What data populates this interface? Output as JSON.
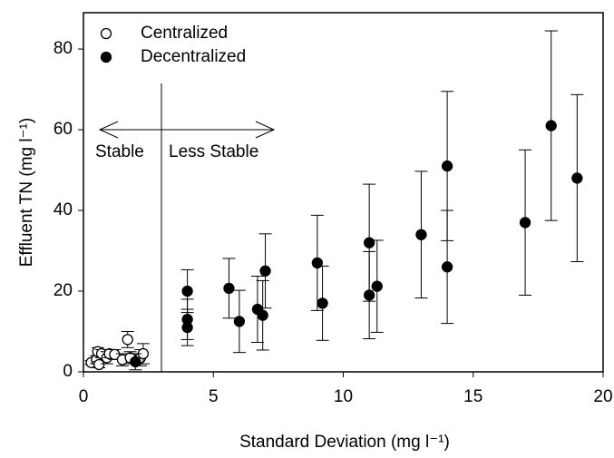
{
  "chart_data": {
    "type": "scatter",
    "x_label": "Standard Deviation (mg l⁻¹)",
    "y_label": "Effluent TN (mg l⁻¹)",
    "annotations": [
      "Stable",
      "Less Stable"
    ],
    "xlim": [
      0,
      20
    ],
    "ylim": [
      0,
      89
    ],
    "xticks": [
      0,
      5,
      10,
      15,
      20
    ],
    "yticks": [
      0,
      20,
      40,
      60,
      80
    ],
    "legend": "top-left",
    "series": [
      {
        "name": "Centralized",
        "color": "#000000",
        "filled": false,
        "x": [
          0.3,
          0.5,
          0.55,
          0.6,
          0.7,
          0.9,
          1.0,
          1.2,
          1.5,
          1.7,
          1.8,
          2.2,
          2.3
        ],
        "values": [
          2.3,
          3,
          5,
          1.8,
          4.5,
          3.5,
          4.5,
          4.3,
          3,
          8,
          3.5,
          3.5,
          4.5
        ],
        "errors": [
          0.5,
          1,
          1,
          0.8,
          1,
          1.5,
          1,
          1.2,
          1.5,
          2,
          1.5,
          2,
          2.5
        ]
      },
      {
        "name": "Decentralized",
        "color": "#000000",
        "filled": true,
        "x": [
          2,
          4,
          4,
          4,
          5.6,
          6,
          6.7,
          6.9,
          7,
          9,
          9.2,
          11,
          11,
          11.3,
          13,
          14,
          14,
          17,
          18,
          19
        ],
        "values": [
          2.5,
          20,
          13,
          11,
          20.7,
          12.5,
          15.5,
          14,
          25,
          27,
          17,
          32,
          19,
          21.2,
          34,
          51,
          26,
          37,
          61,
          48
        ],
        "errors": [
          2,
          5.3,
          5,
          4.5,
          7.4,
          7.7,
          8.2,
          8.6,
          9.2,
          11.8,
          9.2,
          14.5,
          10.8,
          11.4,
          15.7,
          18.5,
          14,
          18,
          23.5,
          20.7
        ]
      }
    ]
  }
}
